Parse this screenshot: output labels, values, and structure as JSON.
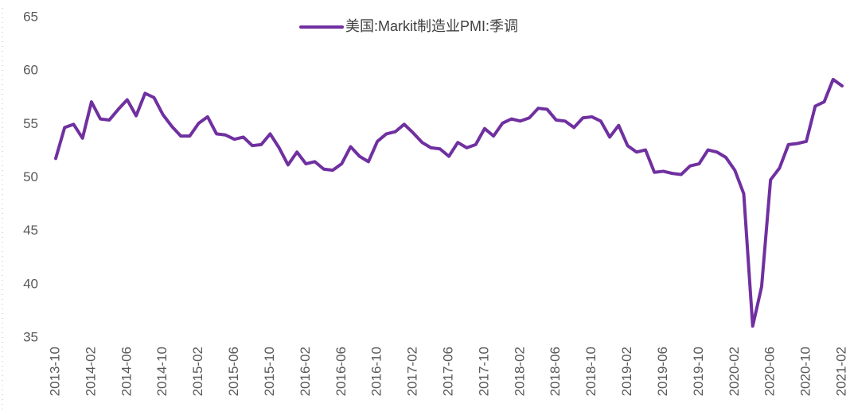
{
  "chart_data": {
    "type": "line",
    "categories": [
      "2013-10",
      null,
      null,
      null,
      "2014-02",
      null,
      null,
      null,
      "2014-06",
      null,
      null,
      null,
      "2014-10",
      null,
      null,
      null,
      "2015-02",
      null,
      null,
      null,
      "2015-06",
      null,
      null,
      null,
      "2015-10",
      null,
      null,
      null,
      "2016-02",
      null,
      null,
      null,
      "2016-06",
      null,
      null,
      null,
      "2016-10",
      null,
      null,
      null,
      "2017-02",
      null,
      null,
      null,
      "2017-06",
      null,
      null,
      null,
      "2017-10",
      null,
      null,
      null,
      "2018-02",
      null,
      null,
      null,
      "2018-06",
      null,
      null,
      null,
      "2018-10",
      null,
      null,
      null,
      "2019-02",
      null,
      null,
      null,
      "2019-06",
      null,
      null,
      null,
      "2019-10",
      null,
      null,
      null,
      "2020-02",
      null,
      null,
      null,
      "2020-06",
      null,
      null,
      null,
      "2020-10",
      null,
      null,
      null,
      "2021-02"
    ],
    "series": [
      {
        "name": "美国:Markit制造业PMI:季调",
        "color": "#7030a0",
        "values": [
          51.8,
          54.7,
          55.0,
          53.7,
          57.1,
          55.5,
          55.4,
          56.4,
          57.3,
          55.8,
          57.9,
          57.5,
          55.9,
          54.8,
          53.9,
          53.9,
          55.1,
          55.7,
          54.1,
          54.0,
          53.6,
          53.8,
          53.0,
          53.1,
          54.1,
          52.8,
          51.2,
          52.4,
          51.3,
          51.5,
          50.8,
          50.7,
          51.3,
          52.9,
          52.0,
          51.5,
          53.4,
          54.1,
          54.3,
          55.0,
          54.2,
          53.3,
          52.8,
          52.7,
          52.0,
          53.3,
          52.8,
          53.1,
          54.6,
          53.9,
          55.1,
          55.5,
          55.3,
          55.6,
          56.5,
          56.4,
          55.4,
          55.3,
          54.7,
          55.6,
          55.7,
          55.3,
          53.8,
          54.9,
          53.0,
          52.4,
          52.6,
          50.5,
          50.6,
          50.4,
          50.3,
          51.1,
          51.3,
          52.6,
          52.4,
          51.9,
          50.7,
          48.5,
          36.1,
          39.8,
          49.8,
          50.9,
          53.1,
          53.2,
          53.4,
          56.7,
          57.1,
          59.2,
          58.6
        ]
      }
    ],
    "ylim": [
      35,
      65
    ],
    "yticks": [
      35,
      40,
      45,
      50,
      55,
      60,
      65
    ],
    "grid": false,
    "legend": "top"
  }
}
